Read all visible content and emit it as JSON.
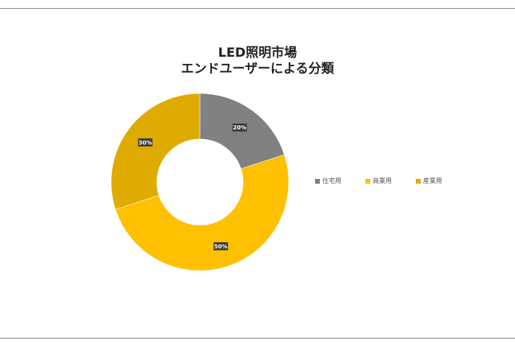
{
  "chart_data": {
    "type": "pie",
    "title_lines": [
      "LED照明市場",
      "エンドユーザーによる分類"
    ],
    "categories": [
      "住宅用",
      "商業用",
      "産業用"
    ],
    "values": [
      20,
      50,
      30
    ],
    "data_labels": [
      "20%",
      "50%",
      "30%"
    ],
    "colors": [
      "#7f7f7f",
      "#ffc000",
      "#e0ab00"
    ],
    "donut": true,
    "legend_position": "right"
  }
}
